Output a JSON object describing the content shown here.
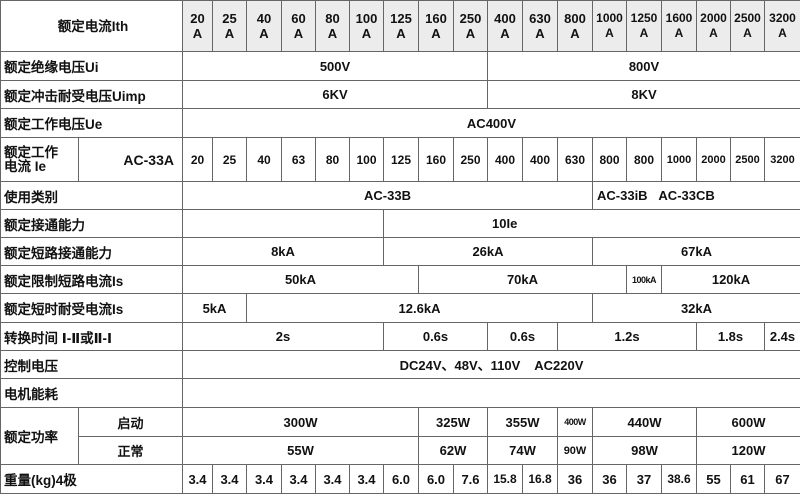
{
  "header": {
    "label": "额定电流Ith",
    "currents": [
      "20",
      "25",
      "40",
      "60",
      "80",
      "100",
      "125",
      "160",
      "250",
      "400",
      "630",
      "800",
      "1000",
      "1250",
      "1600",
      "2000",
      "2500",
      "3200"
    ],
    "unit": "A"
  },
  "rows": {
    "ui": {
      "label": "额定绝缘电压Ui",
      "values": [
        "500V",
        "800V"
      ]
    },
    "uimp": {
      "label": "额定冲击耐受电压Uimp",
      "values": [
        "6KV",
        "8KV"
      ]
    },
    "ue": {
      "label": "额定工作电压Ue",
      "values": [
        "AC400V"
      ]
    },
    "ie": {
      "label_line1": "额定工作",
      "label_line2": "电流 Ie",
      "category": "AC-33A",
      "values": [
        "20",
        "25",
        "40",
        "63",
        "80",
        "100",
        "125",
        "160",
        "250",
        "400",
        "400",
        "630",
        "800",
        "800",
        "1000",
        "2000",
        "2500",
        "3200"
      ]
    },
    "category": {
      "label": "使用类别",
      "values": [
        "AC-33B",
        "AC-33iB",
        "AC-33CB"
      ]
    },
    "making": {
      "label": "额定接通能力",
      "values": [
        "10Ie"
      ]
    },
    "short_making": {
      "label": "额定短路接通能力",
      "values": [
        "8kA",
        "26kA",
        "67kA"
      ]
    },
    "limited": {
      "label": "额定限制短路电流Is",
      "values": [
        "50kA",
        "70kA",
        "100kA",
        "120kA"
      ]
    },
    "withstand": {
      "label": "额定短时耐受电流Is",
      "values": [
        "5kA",
        "12.6kA",
        "32kA"
      ]
    },
    "switch_time": {
      "label": "转换时间 Ⅰ-Ⅱ或Ⅱ-Ⅰ",
      "values": [
        "2s",
        "0.6s",
        "0.6s",
        "1.2s",
        "1.8s",
        "2.4s"
      ]
    },
    "control": {
      "label": "控制电压",
      "values": [
        "DC24V、48V、110V    AC220V"
      ]
    },
    "motor": {
      "label": "电机能耗"
    },
    "power": {
      "label": "额定功率",
      "start": {
        "label": "启动",
        "values": [
          "300W",
          "325W",
          "355W",
          "400W",
          "440W",
          "600W"
        ]
      },
      "normal": {
        "label": "正常",
        "values": [
          "55W",
          "62W",
          "74W",
          "90W",
          "98W",
          "120W"
        ]
      }
    },
    "weight": {
      "label": "重量(kg)4极",
      "values": [
        "3.4",
        "3.4",
        "3.4",
        "3.4",
        "3.4",
        "3.4",
        "6.0",
        "6.0",
        "7.6",
        "15.8",
        "16.8",
        "36",
        "36",
        "37",
        "38.6",
        "55",
        "61",
        "67"
      ]
    }
  }
}
